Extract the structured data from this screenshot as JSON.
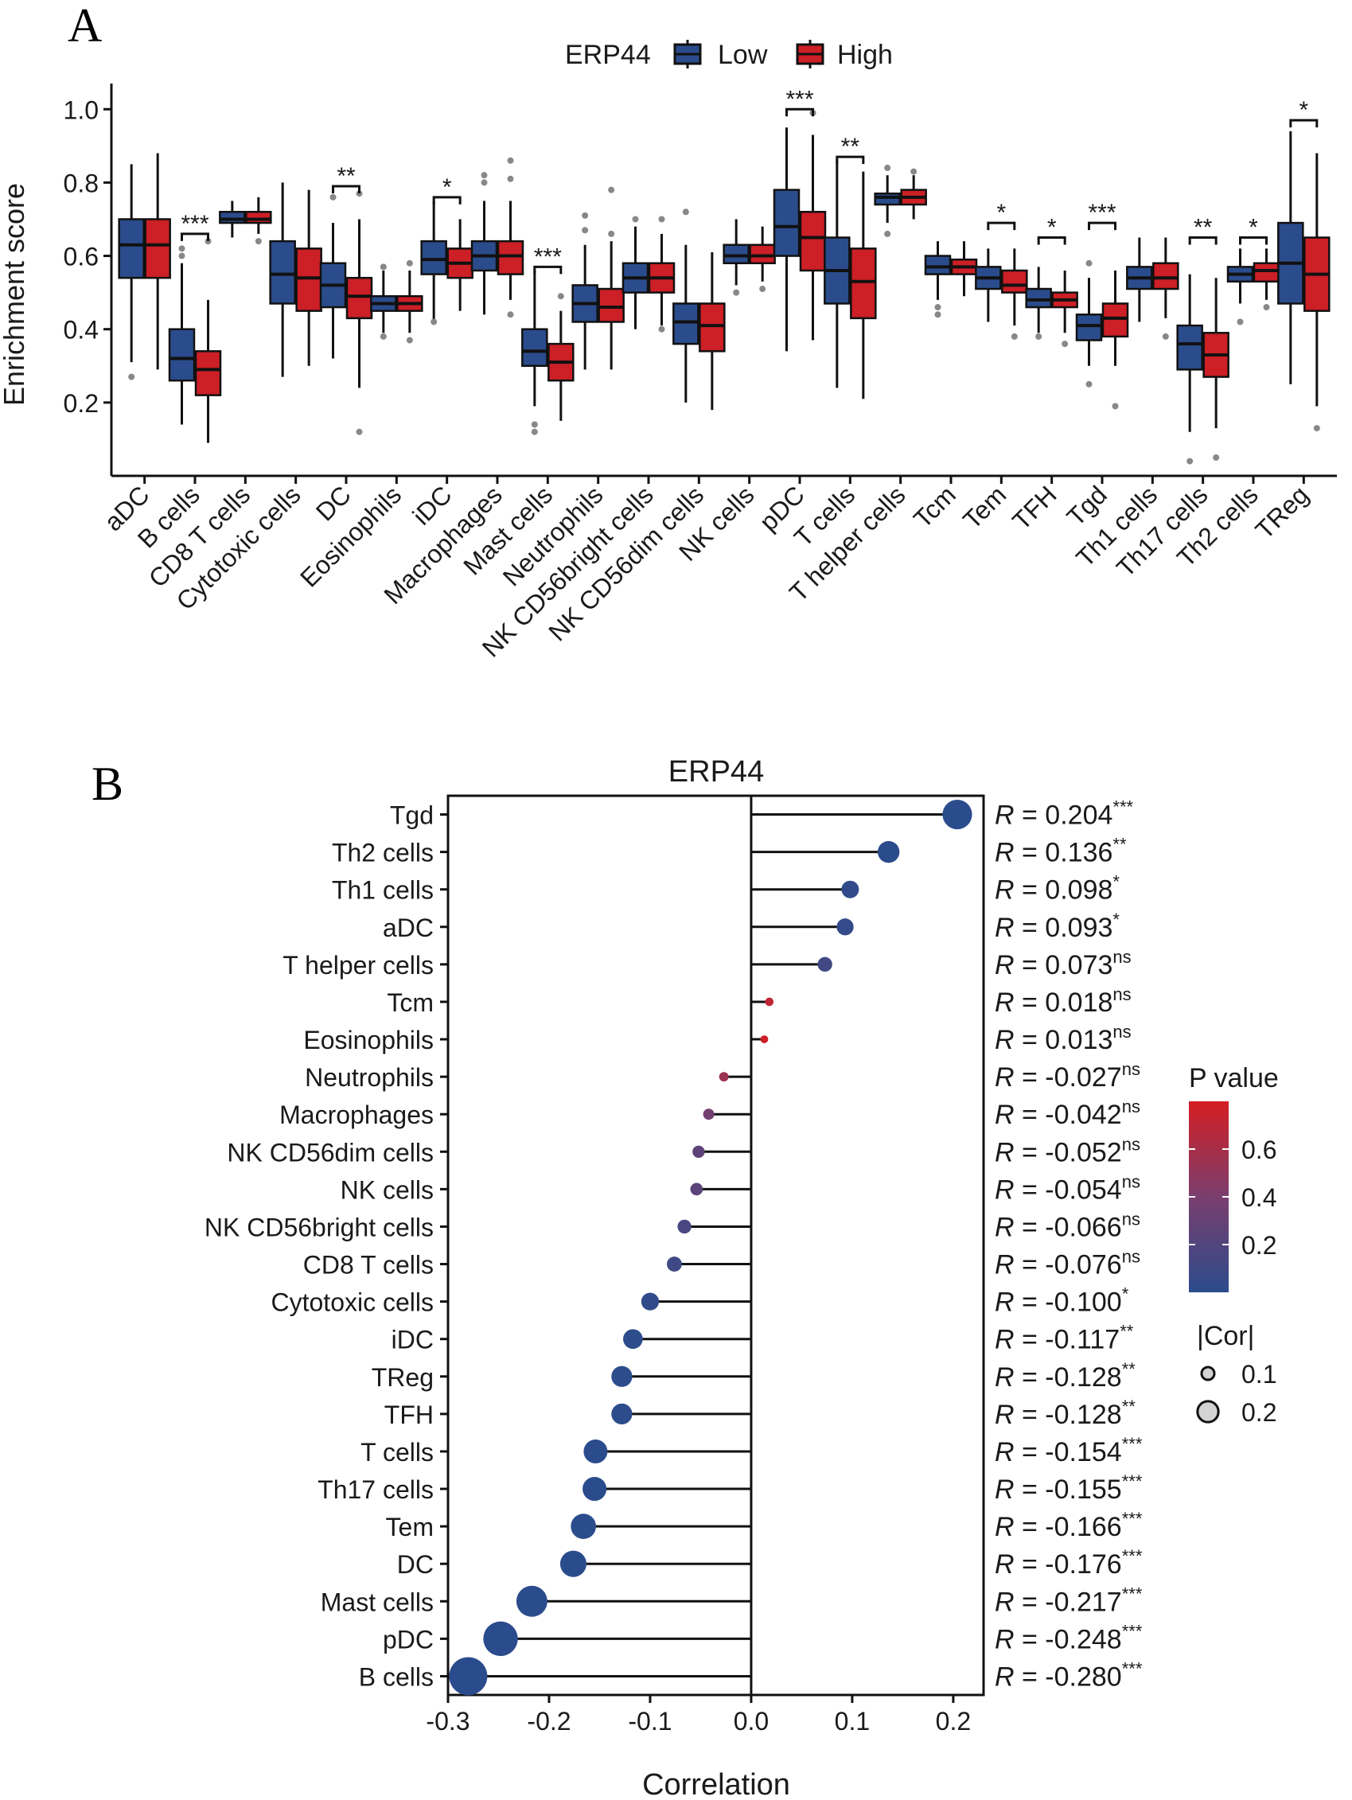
{
  "chart_data": [
    {
      "type": "box",
      "panel_label": "A",
      "legend_title": "ERP44",
      "legend": [
        {
          "label": "Low",
          "color": "#2B4C8C"
        },
        {
          "label": "High",
          "color": "#CC1F26"
        }
      ],
      "ylabel": "Enrichment score",
      "ylim": [
        0,
        1.07
      ],
      "yticks": [
        "0.2",
        "0.4",
        "0.6",
        "0.8",
        "1.0"
      ],
      "ytick_values": [
        0.2,
        0.4,
        0.6,
        0.8,
        1.0
      ],
      "categories": [
        "aDC",
        "B cells",
        "CD8 T cells",
        "Cytotoxic cells",
        "DC",
        "Eosinophils",
        "iDC",
        "Macrophages",
        "Mast cells",
        "Neutrophils",
        "NK CD56bright cells",
        "NK CD56dim cells",
        "NK cells",
        "pDC",
        "T cells",
        "T helper cells",
        "Tcm",
        "Tem",
        "TFH",
        "Tgd",
        "Th1 cells",
        "Th17 cells",
        "Th2 cells",
        "TReg"
      ],
      "series": [
        {
          "name": "Low",
          "color": "#2B4C8C",
          "values": [
            {
              "min": 0.31,
              "q1": 0.54,
              "median": 0.63,
              "q3": 0.7,
              "max": 0.85,
              "outliers": [
                0.27
              ]
            },
            {
              "min": 0.14,
              "q1": 0.26,
              "median": 0.32,
              "q3": 0.4,
              "max": 0.58,
              "outliers": [
                0.6,
                0.62
              ]
            },
            {
              "min": 0.65,
              "q1": 0.69,
              "median": 0.7,
              "q3": 0.72,
              "max": 0.75,
              "outliers": []
            },
            {
              "min": 0.27,
              "q1": 0.47,
              "median": 0.55,
              "q3": 0.64,
              "max": 0.8,
              "outliers": []
            },
            {
              "min": 0.32,
              "q1": 0.46,
              "median": 0.52,
              "q3": 0.58,
              "max": 0.69,
              "outliers": [
                0.76
              ]
            },
            {
              "min": 0.39,
              "q1": 0.45,
              "median": 0.47,
              "q3": 0.49,
              "max": 0.56,
              "outliers": [
                0.38,
                0.57
              ]
            },
            {
              "min": 0.42,
              "q1": 0.55,
              "median": 0.59,
              "q3": 0.64,
              "max": 0.75,
              "outliers": [
                0.42
              ]
            },
            {
              "min": 0.44,
              "q1": 0.56,
              "median": 0.6,
              "q3": 0.64,
              "max": 0.75,
              "outliers": [
                0.8,
                0.82
              ]
            },
            {
              "min": 0.19,
              "q1": 0.3,
              "median": 0.34,
              "q3": 0.4,
              "max": 0.56,
              "outliers": [
                0.12,
                0.14
              ]
            },
            {
              "min": 0.29,
              "q1": 0.42,
              "median": 0.47,
              "q3": 0.52,
              "max": 0.63,
              "outliers": [
                0.67,
                0.71
              ]
            },
            {
              "min": 0.4,
              "q1": 0.5,
              "median": 0.54,
              "q3": 0.58,
              "max": 0.68,
              "outliers": [
                0.7
              ]
            },
            {
              "min": 0.2,
              "q1": 0.36,
              "median": 0.42,
              "q3": 0.47,
              "max": 0.63,
              "outliers": [
                0.72
              ]
            },
            {
              "min": 0.52,
              "q1": 0.58,
              "median": 0.6,
              "q3": 0.63,
              "max": 0.7,
              "outliers": [
                0.5
              ]
            },
            {
              "min": 0.34,
              "q1": 0.6,
              "median": 0.68,
              "q3": 0.78,
              "max": 0.95,
              "outliers": []
            },
            {
              "min": 0.24,
              "q1": 0.47,
              "median": 0.56,
              "q3": 0.65,
              "max": 0.86,
              "outliers": []
            },
            {
              "min": 0.69,
              "q1": 0.74,
              "median": 0.76,
              "q3": 0.77,
              "max": 0.82,
              "outliers": [
                0.66,
                0.84
              ]
            },
            {
              "min": 0.48,
              "q1": 0.55,
              "median": 0.57,
              "q3": 0.6,
              "max": 0.64,
              "outliers": [
                0.44,
                0.46
              ]
            },
            {
              "min": 0.42,
              "q1": 0.51,
              "median": 0.54,
              "q3": 0.57,
              "max": 0.62,
              "outliers": []
            },
            {
              "min": 0.39,
              "q1": 0.46,
              "median": 0.48,
              "q3": 0.51,
              "max": 0.57,
              "outliers": [
                0.38
              ]
            },
            {
              "min": 0.3,
              "q1": 0.37,
              "median": 0.41,
              "q3": 0.44,
              "max": 0.54,
              "outliers": [
                0.25,
                0.58
              ]
            },
            {
              "min": 0.42,
              "q1": 0.51,
              "median": 0.54,
              "q3": 0.57,
              "max": 0.65,
              "outliers": []
            },
            {
              "min": 0.12,
              "q1": 0.29,
              "median": 0.36,
              "q3": 0.41,
              "max": 0.55,
              "outliers": [
                0.04
              ]
            },
            {
              "min": 0.47,
              "q1": 0.53,
              "median": 0.55,
              "q3": 0.57,
              "max": 0.62,
              "outliers": [
                0.42
              ]
            },
            {
              "min": 0.25,
              "q1": 0.47,
              "median": 0.58,
              "q3": 0.69,
              "max": 0.94,
              "outliers": []
            }
          ]
        },
        {
          "name": "High",
          "color": "#CC1F26",
          "values": [
            {
              "min": 0.29,
              "q1": 0.54,
              "median": 0.63,
              "q3": 0.7,
              "max": 0.88,
              "outliers": []
            },
            {
              "min": 0.09,
              "q1": 0.22,
              "median": 0.29,
              "q3": 0.34,
              "max": 0.48,
              "outliers": [
                0.64
              ]
            },
            {
              "min": 0.66,
              "q1": 0.69,
              "median": 0.7,
              "q3": 0.72,
              "max": 0.76,
              "outliers": [
                0.64
              ]
            },
            {
              "min": 0.3,
              "q1": 0.45,
              "median": 0.54,
              "q3": 0.62,
              "max": 0.78,
              "outliers": []
            },
            {
              "min": 0.24,
              "q1": 0.43,
              "median": 0.49,
              "q3": 0.54,
              "max": 0.7,
              "outliers": [
                0.12,
                0.77
              ]
            },
            {
              "min": 0.39,
              "q1": 0.45,
              "median": 0.47,
              "q3": 0.49,
              "max": 0.56,
              "outliers": [
                0.37,
                0.58
              ]
            },
            {
              "min": 0.45,
              "q1": 0.54,
              "median": 0.58,
              "q3": 0.62,
              "max": 0.7,
              "outliers": []
            },
            {
              "min": 0.48,
              "q1": 0.55,
              "median": 0.6,
              "q3": 0.64,
              "max": 0.75,
              "outliers": [
                0.44,
                0.81,
                0.86
              ]
            },
            {
              "min": 0.15,
              "q1": 0.26,
              "median": 0.31,
              "q3": 0.36,
              "max": 0.45,
              "outliers": [
                0.49
              ]
            },
            {
              "min": 0.29,
              "q1": 0.42,
              "median": 0.46,
              "q3": 0.51,
              "max": 0.64,
              "outliers": [
                0.66,
                0.78
              ]
            },
            {
              "min": 0.41,
              "q1": 0.5,
              "median": 0.54,
              "q3": 0.58,
              "max": 0.66,
              "outliers": [
                0.4,
                0.7
              ]
            },
            {
              "min": 0.18,
              "q1": 0.34,
              "median": 0.41,
              "q3": 0.47,
              "max": 0.61,
              "outliers": []
            },
            {
              "min": 0.53,
              "q1": 0.58,
              "median": 0.6,
              "q3": 0.63,
              "max": 0.68,
              "outliers": [
                0.51
              ]
            },
            {
              "min": 0.37,
              "q1": 0.56,
              "median": 0.65,
              "q3": 0.72,
              "max": 0.93,
              "outliers": [
                0.99
              ]
            },
            {
              "min": 0.21,
              "q1": 0.43,
              "median": 0.53,
              "q3": 0.62,
              "max": 0.83,
              "outliers": []
            },
            {
              "min": 0.7,
              "q1": 0.74,
              "median": 0.76,
              "q3": 0.78,
              "max": 0.82,
              "outliers": [
                0.83
              ]
            },
            {
              "min": 0.49,
              "q1": 0.55,
              "median": 0.57,
              "q3": 0.59,
              "max": 0.64,
              "outliers": []
            },
            {
              "min": 0.41,
              "q1": 0.5,
              "median": 0.52,
              "q3": 0.56,
              "max": 0.62,
              "outliers": [
                0.38
              ]
            },
            {
              "min": 0.39,
              "q1": 0.46,
              "median": 0.48,
              "q3": 0.5,
              "max": 0.56,
              "outliers": [
                0.36
              ]
            },
            {
              "min": 0.3,
              "q1": 0.38,
              "median": 0.43,
              "q3": 0.47,
              "max": 0.56,
              "outliers": [
                0.19
              ]
            },
            {
              "min": 0.43,
              "q1": 0.51,
              "median": 0.54,
              "q3": 0.58,
              "max": 0.65,
              "outliers": [
                0.38
              ]
            },
            {
              "min": 0.13,
              "q1": 0.27,
              "median": 0.33,
              "q3": 0.39,
              "max": 0.54,
              "outliers": [
                0.05
              ]
            },
            {
              "min": 0.48,
              "q1": 0.53,
              "median": 0.56,
              "q3": 0.58,
              "max": 0.62,
              "outliers": [
                0.46
              ]
            },
            {
              "min": 0.19,
              "q1": 0.45,
              "median": 0.55,
              "q3": 0.65,
              "max": 0.88,
              "outliers": [
                0.13
              ]
            }
          ]
        }
      ],
      "significance": [
        {
          "category": "B cells",
          "label": "***",
          "y": 0.66
        },
        {
          "category": "DC",
          "label": "**",
          "y": 0.79
        },
        {
          "category": "iDC",
          "label": "*",
          "y": 0.76
        },
        {
          "category": "Mast cells",
          "label": "***",
          "y": 0.57
        },
        {
          "category": "pDC",
          "label": "***",
          "y": 1.0
        },
        {
          "category": "T cells",
          "label": "**",
          "y": 0.87
        },
        {
          "category": "Tem",
          "label": "*",
          "y": 0.69
        },
        {
          "category": "TFH",
          "label": "*",
          "y": 0.65
        },
        {
          "category": "Tgd",
          "label": "***",
          "y": 0.69
        },
        {
          "category": "Th17 cells",
          "label": "**",
          "y": 0.65
        },
        {
          "category": "Th2 cells",
          "label": "*",
          "y": 0.65
        },
        {
          "category": "TReg",
          "label": "*",
          "y": 0.97
        }
      ]
    },
    {
      "type": "lollipop",
      "panel_label": "B",
      "title": "ERP44",
      "xlabel": "Correlation",
      "xlim": [
        -0.3,
        0.23
      ],
      "xticks": [
        "-0.3",
        "-0.2",
        "-0.1",
        "0.0",
        "0.1",
        "0.2"
      ],
      "xtick_values": [
        -0.3,
        -0.2,
        -0.1,
        0.0,
        0.1,
        0.2
      ],
      "r_prefix": "R",
      "items": [
        {
          "name": "Tgd",
          "r": 0.204,
          "r_label": " = 0.204",
          "sig": "***",
          "p": 0.0
        },
        {
          "name": "Th2 cells",
          "r": 0.136,
          "r_label": " = 0.136",
          "sig": "**",
          "p": 0.002
        },
        {
          "name": "Th1 cells",
          "r": 0.098,
          "r_label": " = 0.098",
          "sig": "*",
          "p": 0.03
        },
        {
          "name": "aDC",
          "r": 0.093,
          "r_label": " = 0.093",
          "sig": "*",
          "p": 0.04
        },
        {
          "name": "T helper cells",
          "r": 0.073,
          "r_label": " = 0.073",
          "sig": "ns",
          "p": 0.11
        },
        {
          "name": "Tcm",
          "r": 0.018,
          "r_label": " = 0.018",
          "sig": "ns",
          "p": 0.7
        },
        {
          "name": "Eosinophils",
          "r": 0.013,
          "r_label": " = 0.013",
          "sig": "ns",
          "p": 0.77
        },
        {
          "name": "Neutrophils",
          "r": -0.027,
          "r_label": " = -0.027",
          "sig": "ns",
          "p": 0.55
        },
        {
          "name": "Macrophages",
          "r": -0.042,
          "r_label": " = -0.042",
          "sig": "ns",
          "p": 0.36
        },
        {
          "name": "NK CD56dim cells",
          "r": -0.052,
          "r_label": " = -0.052",
          "sig": "ns",
          "p": 0.26
        },
        {
          "name": "NK cells",
          "r": -0.054,
          "r_label": " = -0.054",
          "sig": "ns",
          "p": 0.24
        },
        {
          "name": "NK CD56bright cells",
          "r": -0.066,
          "r_label": " = -0.066",
          "sig": "ns",
          "p": 0.15
        },
        {
          "name": "CD8 T cells",
          "r": -0.076,
          "r_label": " = -0.076",
          "sig": "ns",
          "p": 0.1
        },
        {
          "name": "Cytotoxic cells",
          "r": -0.1,
          "r_label": " = -0.100",
          "sig": "*",
          "p": 0.03
        },
        {
          "name": "iDC",
          "r": -0.117,
          "r_label": " = -0.117",
          "sig": "**",
          "p": 0.01
        },
        {
          "name": "TReg",
          "r": -0.128,
          "r_label": " = -0.128",
          "sig": "**",
          "p": 0.005
        },
        {
          "name": "TFH",
          "r": -0.128,
          "r_label": " = -0.128",
          "sig": "**",
          "p": 0.005
        },
        {
          "name": "T cells",
          "r": -0.154,
          "r_label": " = -0.154",
          "sig": "***",
          "p": 0.0007
        },
        {
          "name": "Th17 cells",
          "r": -0.155,
          "r_label": " = -0.155",
          "sig": "***",
          "p": 0.0007
        },
        {
          "name": "Tem",
          "r": -0.166,
          "r_label": " = -0.166",
          "sig": "***",
          "p": 0.0003
        },
        {
          "name": "DC",
          "r": -0.176,
          "r_label": " = -0.176",
          "sig": "***",
          "p": 0.0001
        },
        {
          "name": "Mast cells",
          "r": -0.217,
          "r_label": " = -0.217",
          "sig": "***",
          "p": 0.0
        },
        {
          "name": "pDC",
          "r": -0.248,
          "r_label": " = -0.248",
          "sig": "***",
          "p": 0.0
        },
        {
          "name": "B cells",
          "r": -0.28,
          "r_label": " = -0.280",
          "sig": "***",
          "p": 0.0
        }
      ],
      "color_legend": {
        "title": "P value",
        "range": [
          0,
          0.8
        ],
        "ticks": [
          "0.2",
          "0.4",
          "0.6"
        ],
        "tick_values": [
          0.2,
          0.4,
          0.6
        ],
        "low_color": "#2B4C8C",
        "high_color": "#D41E22"
      },
      "size_legend": {
        "title": "|Cor|",
        "entries": [
          {
            "label": "0.1",
            "value": 0.1
          },
          {
            "label": "0.2",
            "value": 0.2
          }
        ]
      }
    }
  ]
}
